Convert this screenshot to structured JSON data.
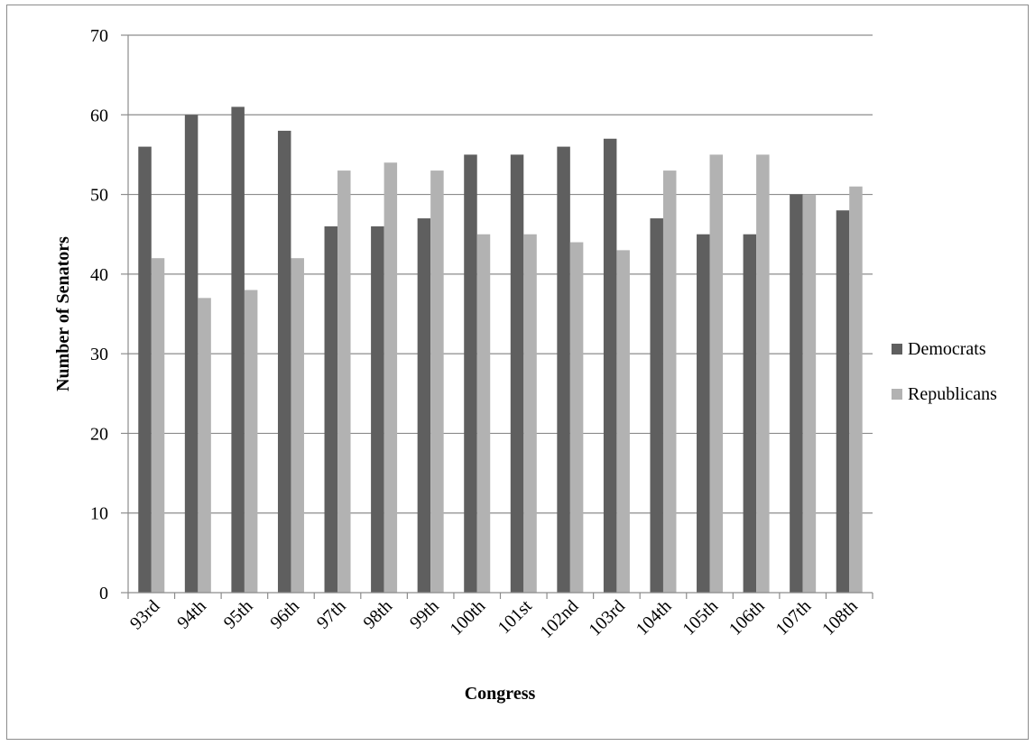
{
  "chart_data": {
    "type": "bar",
    "title": "",
    "xlabel": "Congress",
    "ylabel": "Number of Senators",
    "ylim": [
      0,
      70
    ],
    "yticks": [
      "0",
      "10",
      "20",
      "30",
      "40",
      "50",
      "60",
      "70"
    ],
    "grid": true,
    "legend_position": "right",
    "categories": [
      "93rd",
      "94th",
      "95th",
      "96th",
      "97th",
      "98th",
      "99th",
      "100th",
      "101st",
      "102nd",
      "103rd",
      "104th",
      "105th",
      "106th",
      "107th",
      "108th"
    ],
    "series": [
      {
        "name": "Democrats",
        "color": "#5f5f5f",
        "values": [
          56,
          60,
          61,
          58,
          46,
          46,
          47,
          55,
          55,
          56,
          57,
          47,
          45,
          45,
          50,
          48
        ]
      },
      {
        "name": "Republicans",
        "color": "#b2b2b2",
        "values": [
          42,
          37,
          38,
          42,
          53,
          54,
          53,
          45,
          45,
          44,
          43,
          53,
          55,
          55,
          50,
          51
        ]
      }
    ]
  },
  "colors": {
    "gridline": "#8c8c8c",
    "axis": "#8c8c8c"
  }
}
